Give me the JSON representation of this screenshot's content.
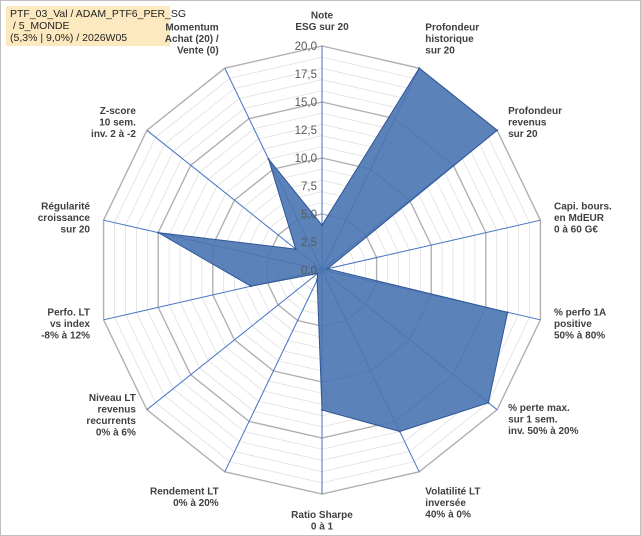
{
  "title_lines": [
    "PTF_03_Val / ADAM_PTF6_PER_SG",
    " / 5_MONDE",
    "(5,3% | 9,0%) / 2026W05"
  ],
  "colors": {
    "fill": "#4a75b1",
    "stroke": "#2f5597",
    "spoke": "#4472c4",
    "grid": "#bfbfbf",
    "title_bg": "#fde9bf"
  },
  "chart_data": {
    "type": "radar",
    "rmax": 20,
    "ticks": [
      "0,0",
      "2,5",
      "5,0",
      "7,5",
      "10,0",
      "12,5",
      "15,0",
      "17,5",
      "20,0"
    ],
    "axes": [
      {
        "label": [
          "Note",
          "ESG sur 20"
        ],
        "value": 4
      },
      {
        "label": [
          "Profondeur",
          "historique",
          "sur 20"
        ],
        "value": 20
      },
      {
        "label": [
          "Profondeur",
          "revenus",
          "sur 20"
        ],
        "value": 20
      },
      {
        "label": [
          "Capi. bours.",
          "en MdEUR",
          "0 à 60 G€"
        ],
        "value": 0.5
      },
      {
        "label": [
          "% perfo 1A",
          "positive",
          "50% à 80%"
        ],
        "value": 17
      },
      {
        "label": [
          "% perte max.",
          "sur 1 sem.",
          "inv. 50% à 20%"
        ],
        "value": 19
      },
      {
        "label": [
          "Volatilité LT",
          "inversée",
          "40% à 0%"
        ],
        "value": 16
      },
      {
        "label": [
          "Ratio Sharpe",
          "0 à 1"
        ],
        "value": 12.5
      },
      {
        "label": [
          "Rendement LT",
          "0% à 20%"
        ],
        "value": 1
      },
      {
        "label": [
          "Niveau LT",
          "revenus",
          "recurrents",
          "0% à 6%"
        ],
        "value": 0.5
      },
      {
        "label": [
          "Perfo. LT",
          "vs index",
          "-8% à 12%"
        ],
        "value": 6.5
      },
      {
        "label": [
          "Régularité",
          "croissance",
          "sur 20"
        ],
        "value": 15
      },
      {
        "label": [
          "Z-score",
          "10 sem.",
          "inv. 2 à -2"
        ],
        "value": 3
      },
      {
        "label": [
          "Momentum",
          "Achat (20) /",
          "Vente (0)"
        ],
        "value": 11
      }
    ]
  }
}
